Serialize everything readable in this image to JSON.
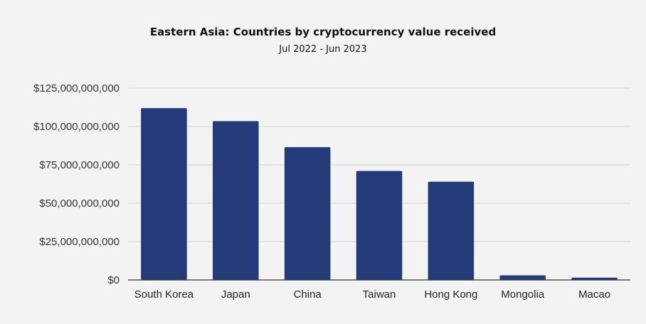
{
  "chart_data": {
    "type": "bar",
    "title": "Eastern Asia: Countries by cryptocurrency value received",
    "subtitle": "Jul 2022 - Jun 2023",
    "categories": [
      "South Korea",
      "Japan",
      "China",
      "Taiwan",
      "Hong Kong",
      "Mongolia",
      "Macao"
    ],
    "values": [
      112000000000,
      103500000000,
      86500000000,
      71000000000,
      64000000000,
      3000000000,
      1500000000
    ],
    "ylim": [
      0,
      125000000000
    ],
    "yticks": [
      0,
      25000000000,
      50000000000,
      75000000000,
      100000000000,
      125000000000
    ],
    "ytick_labels": [
      "$0",
      "$25,000,000,000",
      "$50,000,000,000",
      "$75,000,000,000",
      "$100,000,000,000",
      "$125,000,000,000"
    ],
    "xlabel": "",
    "ylabel": "",
    "grid": true,
    "legend": "none",
    "colors": {
      "bar": "#253a78",
      "background": "#f3f3f3",
      "grid": "#d4d4d4"
    }
  }
}
